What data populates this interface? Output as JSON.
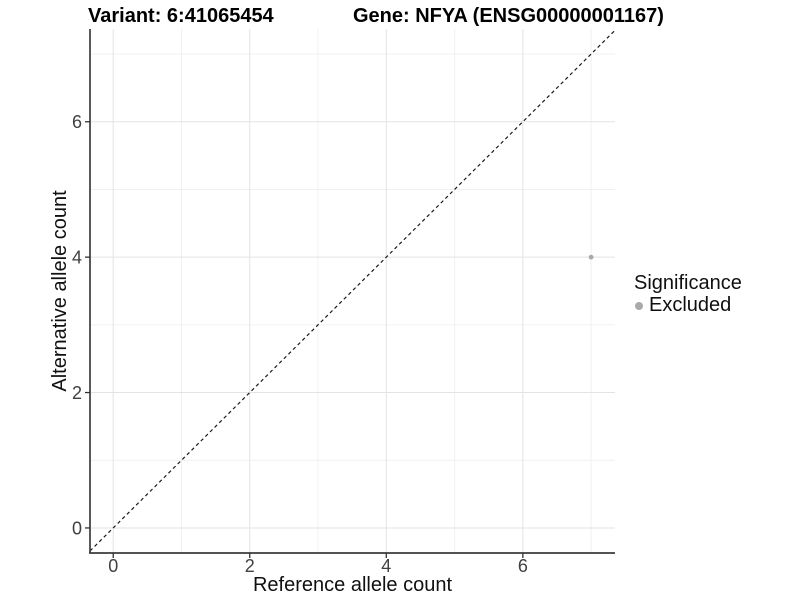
{
  "chart_data": {
    "type": "scatter",
    "title_left": "Variant: 6:41065454",
    "title_right": "Gene: NFYA (ENSG00000001167)",
    "xlabel": "Reference allele count",
    "ylabel": "Alternative allele count",
    "xlim": [
      -0.34,
      7.35
    ],
    "ylim": [
      -0.37,
      7.37
    ],
    "xticks": [
      0,
      2,
      4,
      6
    ],
    "yticks": [
      0,
      2,
      4,
      6
    ],
    "x_minor_gridlines": [
      1,
      3,
      5,
      7
    ],
    "y_minor_gridlines": [
      1,
      3,
      5,
      7
    ],
    "grid": true,
    "points": [
      {
        "x": 7,
        "y": 4,
        "series": "Excluded"
      }
    ],
    "reference_line": {
      "type": "identity y=x",
      "style": "dashed",
      "color": "#1a1a1a"
    },
    "legend": {
      "title": "Significance",
      "position": "right",
      "items": [
        {
          "label": "Excluded",
          "color": "#a9a9a9"
        }
      ]
    },
    "colors": {
      "background": "#ffffff",
      "grid_major": "#e3e3e3",
      "grid_minor": "#f0f0f0",
      "axis_line": "#3c3c3c",
      "tick_mark": "#333333",
      "point": "#a9a9a9"
    }
  }
}
